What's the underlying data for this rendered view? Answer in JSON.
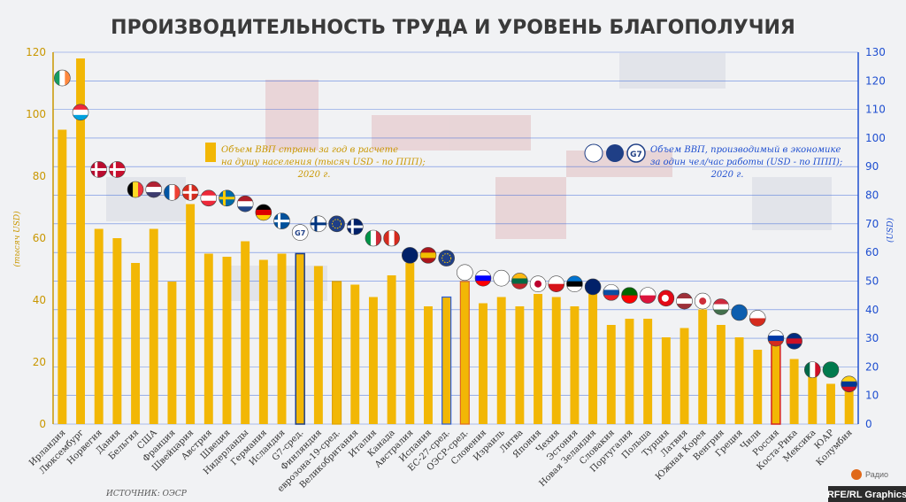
{
  "title": "ПРОИЗВОДИТЕЛЬНОСТЬ ТРУДА И УРОВЕНЬ БЛАГОПОЛУЧИЯ",
  "source": "ИСТОЧНИК: ОЭСР",
  "credit": "RFE/RL Graphics",
  "radio_label": "Радио",
  "legend_gdp": {
    "line1": "Объем ВВП страны за год в расчете",
    "line2": "на душу населения (тысяч USD - по ППП);",
    "line3": "2020 г."
  },
  "legend_productivity": {
    "badge": "G7",
    "line1": "Объем ВВП, производимый в экономике",
    "line2": "за один чел/час работы (USD - по ППП);",
    "line3": "2020 г."
  },
  "colors": {
    "bar": "#f2b705",
    "grid": "#2a5bd7",
    "left_axis": "#c99700",
    "right_axis": "#1f4fd0",
    "highlight_bar": "#1f3f86",
    "russia_box": "#d62222",
    "euro_box": "#e0a400",
    "oecd_box": "#e0691a",
    "eu_box": "#2a5bd7"
  },
  "chart_data": {
    "type": "bar",
    "title": "ПРОИЗВОДИТЕЛЬНОСТЬ ТРУДА И УРОВЕНЬ БЛАГОПОЛУЧИЯ",
    "ylabel": "(тысяч USD)",
    "y2label": "(USD)",
    "ylim": [
      0,
      120
    ],
    "y2lim": [
      0,
      130
    ],
    "yticks": [
      0,
      20,
      40,
      60,
      80,
      100,
      120
    ],
    "y2ticks": [
      0,
      10,
      20,
      30,
      40,
      50,
      60,
      70,
      80,
      90,
      100,
      110,
      120,
      130
    ],
    "grid": true,
    "categories": [
      "Ирландия",
      "Люксембург",
      "Норвегия",
      "Дания",
      "Бельгия",
      "США",
      "Франция",
      "Швейцария",
      "Австрия",
      "Швеция",
      "Нидерланды",
      "Германия",
      "Исландия",
      "G7-сред.",
      "Финляндия",
      "еврозона-19-сред.",
      "Великобритания",
      "Италия",
      "Канада",
      "Австралия",
      "Испания",
      "ЕС-27-сред.",
      "ОЭСР-сред.",
      "Словения",
      "Израиль",
      "Литва",
      "Япония",
      "Чехия",
      "Эстония",
      "Новая Зеландия",
      "Словакия",
      "Португалия",
      "Польша",
      "Турция",
      "Латвия",
      "Южная Корея",
      "Венгрия",
      "Греция",
      "Чили",
      "Россия",
      "Коста-Рика",
      "Мексика",
      "ЮАР",
      "Колумбия"
    ],
    "series": [
      {
        "values": [
          95,
          118,
          63,
          60,
          52,
          63,
          46,
          71,
          55,
          54,
          59,
          53,
          55,
          55,
          51,
          46,
          45,
          41,
          48,
          52,
          38,
          41,
          46,
          39,
          41,
          38,
          42,
          41,
          38,
          42,
          32,
          34,
          34,
          28,
          31,
          37,
          32,
          28,
          24,
          27,
          21,
          18,
          13,
          14
        ]
      },
      {
        "values": [
          121,
          109,
          89,
          89,
          82,
          82,
          81,
          81,
          79,
          79,
          77,
          74,
          71,
          67,
          70,
          70,
          69,
          65,
          65,
          59,
          59,
          58,
          53,
          51,
          51,
          50,
          49,
          49,
          49,
          48,
          46,
          45,
          45,
          44,
          43,
          43,
          41,
          39,
          37,
          30,
          29,
          19,
          19,
          14
        ]
      }
    ],
    "flags": [
      "ie",
      "lu",
      "no",
      "dk",
      "be",
      "us",
      "fr",
      "ch",
      "at",
      "se",
      "nl",
      "de",
      "is",
      "g7",
      "fi",
      "eu",
      "gb",
      "it",
      "ca",
      "au",
      "es",
      "eu",
      "oecd",
      "si",
      "il",
      "lt",
      "jp",
      "cz",
      "ee",
      "nz",
      "sk",
      "pt",
      "pl",
      "tr",
      "lv",
      "kr",
      "hu",
      "gr",
      "cl",
      "ru",
      "cr",
      "mx",
      "za",
      "co"
    ]
  }
}
